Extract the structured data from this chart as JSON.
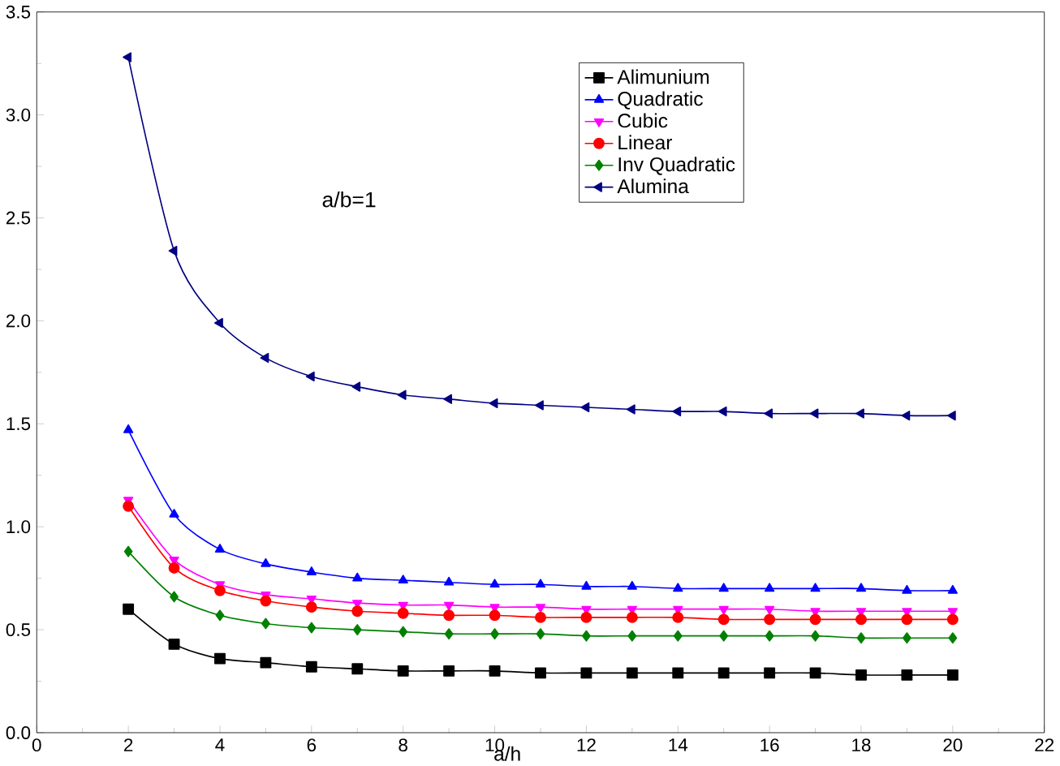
{
  "chart_data": {
    "type": "line",
    "xlabel": "a/h",
    "annotations": [
      "a/b=1"
    ],
    "x": [
      2,
      3,
      4,
      5,
      6,
      7,
      8,
      9,
      10,
      11,
      12,
      13,
      14,
      15,
      16,
      17,
      18,
      19,
      20
    ],
    "xlim": [
      0,
      22
    ],
    "xticks": [
      0,
      2,
      4,
      6,
      8,
      10,
      12,
      14,
      16,
      18,
      20,
      22
    ],
    "ylim": [
      0,
      3.5
    ],
    "yticks": [
      {
        "value": 0,
        "label": "0.0"
      },
      0.5,
      {
        "value": 1,
        "label": "1.0"
      },
      1.5,
      {
        "value": 2,
        "label": "2.0"
      },
      2.5,
      {
        "value": 3,
        "label": "3.0"
      },
      3.5
    ],
    "legend": "top",
    "grid": false,
    "line_style": "solid",
    "series": [
      {
        "name": "Alimunium",
        "color": "#000000",
        "marker": "square",
        "values": [
          0.6,
          0.43,
          0.36,
          0.34,
          0.32,
          0.31,
          0.3,
          0.3,
          0.3,
          0.29,
          0.29,
          0.29,
          0.29,
          0.29,
          0.29,
          0.29,
          0.28,
          0.28,
          0.28
        ]
      },
      {
        "name": "Quadratic",
        "color": "#0000ff",
        "marker": "triangle",
        "values": [
          1.47,
          1.06,
          0.89,
          0.82,
          0.78,
          0.75,
          0.74,
          0.73,
          0.72,
          0.72,
          0.71,
          0.71,
          0.7,
          0.7,
          0.7,
          0.7,
          0.7,
          0.69,
          0.69
        ]
      },
      {
        "name": "Cubic",
        "color": "#ff00ff",
        "marker": "triangle-down",
        "values": [
          1.13,
          0.84,
          0.72,
          0.67,
          0.65,
          0.63,
          0.62,
          0.62,
          0.61,
          0.61,
          0.6,
          0.6,
          0.6,
          0.6,
          0.6,
          0.59,
          0.59,
          0.59,
          0.59
        ]
      },
      {
        "name": "Linear",
        "color": "#ff0000",
        "marker": "circle",
        "values": [
          1.1,
          0.8,
          0.69,
          0.64,
          0.61,
          0.59,
          0.58,
          0.57,
          0.57,
          0.56,
          0.56,
          0.56,
          0.56,
          0.55,
          0.55,
          0.55,
          0.55,
          0.55,
          0.55
        ]
      },
      {
        "name": "Inv Quadratic",
        "color": "#008000",
        "marker": "diamond",
        "values": [
          0.88,
          0.66,
          0.57,
          0.53,
          0.51,
          0.5,
          0.49,
          0.48,
          0.48,
          0.48,
          0.47,
          0.47,
          0.47,
          0.47,
          0.47,
          0.47,
          0.46,
          0.46,
          0.46
        ]
      },
      {
        "name": "Alumina",
        "color": "#000080",
        "marker": "triangle-left",
        "values": [
          3.28,
          2.34,
          1.99,
          1.82,
          1.73,
          1.68,
          1.64,
          1.62,
          1.6,
          1.59,
          1.58,
          1.57,
          1.56,
          1.56,
          1.55,
          1.55,
          1.55,
          1.54,
          1.54
        ]
      }
    ]
  }
}
